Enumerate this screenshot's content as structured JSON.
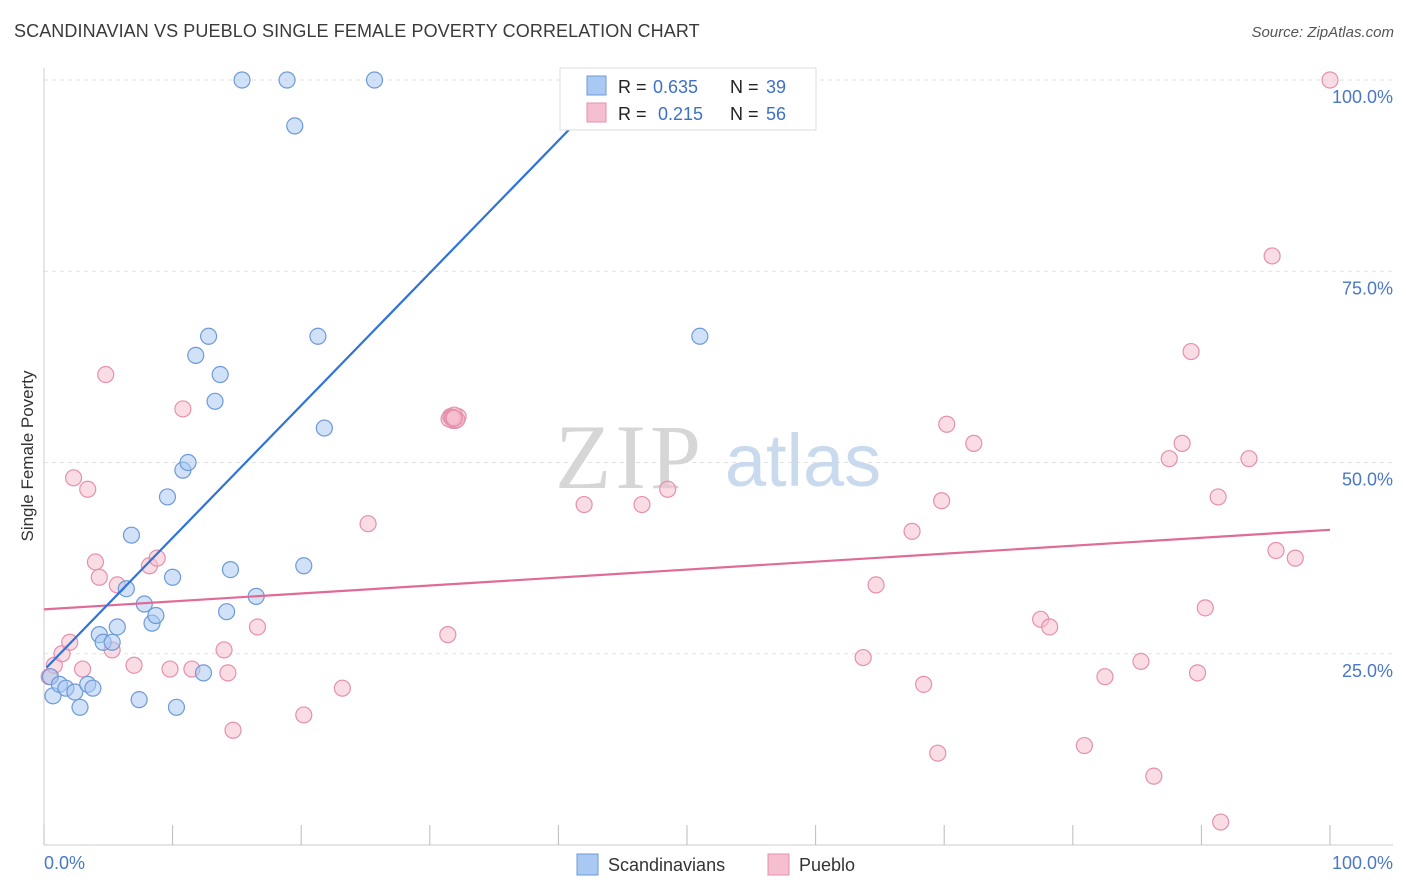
{
  "header": {
    "title": "SCANDINAVIAN VS PUEBLO SINGLE FEMALE POVERTY CORRELATION CHART",
    "source": "Source: ZipAtlas.com"
  },
  "watermark": {
    "zip": "ZIP",
    "atlas": "atlas"
  },
  "colors": {
    "scandinavian_fill": "#a9c8f2",
    "scandinavian_stroke": "#6e9ad6",
    "scandinavian_line": "#2f73d8",
    "pueblo_fill": "#f6bfd0",
    "pueblo_stroke": "#e590ac",
    "pueblo_line": "#e06b96",
    "axis_label": "#4a78c4"
  },
  "legend_top": {
    "r_label": "R =",
    "n_label": "N =",
    "rows": [
      {
        "series": "Scandinavians",
        "r": "0.635",
        "n": "39"
      },
      {
        "series": "Pueblo",
        "r": "0.215",
        "n": "56"
      }
    ]
  },
  "legend_bottom": [
    {
      "label": "Scandinavians"
    },
    {
      "label": "Pueblo"
    }
  ],
  "chart_data": {
    "type": "scatter",
    "title": "SCANDINAVIAN VS PUEBLO SINGLE FEMALE POVERTY CORRELATION CHART",
    "xlabel": "",
    "ylabel": "Single Female Poverty",
    "xlim": [
      0,
      100
    ],
    "ylim": [
      0,
      102.5
    ],
    "x_tick_labels": [
      "0.0%",
      "100.0%"
    ],
    "y_ticks": [
      25,
      50,
      75,
      100
    ],
    "y_tick_labels": [
      "25.0%",
      "50.0%",
      "75.0%",
      "100.0%"
    ],
    "grid": true,
    "series": [
      {
        "name": "Scandinavians",
        "r": 0.635,
        "n": 39,
        "trend": {
          "x0": 0.2,
          "y0": 23.2,
          "x1": 44,
          "y1": 99
        },
        "points": [
          [
            0.5,
            22
          ],
          [
            0.7,
            19.5
          ],
          [
            1.2,
            21
          ],
          [
            1.7,
            20.5
          ],
          [
            2.4,
            20
          ],
          [
            2.8,
            18
          ],
          [
            3.4,
            21
          ],
          [
            3.8,
            20.5
          ],
          [
            4.3,
            27.5
          ],
          [
            4.6,
            26.5
          ],
          [
            5.3,
            26.5
          ],
          [
            5.7,
            28.5
          ],
          [
            6.4,
            33.5
          ],
          [
            6.8,
            40.5
          ],
          [
            7.4,
            19
          ],
          [
            7.8,
            31.5
          ],
          [
            8.4,
            29
          ],
          [
            8.7,
            30
          ],
          [
            9.6,
            45.5
          ],
          [
            10,
            35
          ],
          [
            10.3,
            18
          ],
          [
            10.8,
            49
          ],
          [
            11.2,
            50
          ],
          [
            11.8,
            64
          ],
          [
            12.4,
            22.5
          ],
          [
            12.8,
            66.5
          ],
          [
            13.3,
            58
          ],
          [
            13.7,
            61.5
          ],
          [
            14.2,
            30.5
          ],
          [
            14.5,
            36
          ],
          [
            15.4,
            100
          ],
          [
            16.5,
            32.5
          ],
          [
            18.9,
            100
          ],
          [
            19.5,
            94
          ],
          [
            20.2,
            36.5
          ],
          [
            21.3,
            66.5
          ],
          [
            21.8,
            54.5
          ],
          [
            25.7,
            100
          ],
          [
            51,
            66.5
          ]
        ]
      },
      {
        "name": "Pueblo",
        "r": 0.215,
        "n": 56,
        "trend": {
          "x0": 0,
          "y0": 30.8,
          "x1": 100,
          "y1": 41.2
        },
        "points": [
          [
            0.4,
            22
          ],
          [
            0.8,
            23.5
          ],
          [
            1.4,
            25
          ],
          [
            2,
            26.5
          ],
          [
            2.3,
            48
          ],
          [
            3,
            23
          ],
          [
            3.4,
            46.5
          ],
          [
            4,
            37
          ],
          [
            4.3,
            35
          ],
          [
            4.8,
            61.5
          ],
          [
            5.3,
            25.5
          ],
          [
            5.7,
            34
          ],
          [
            7,
            23.5
          ],
          [
            8.2,
            36.5
          ],
          [
            8.8,
            37.5
          ],
          [
            9.8,
            23
          ],
          [
            10.8,
            57
          ],
          [
            11.5,
            23
          ],
          [
            14,
            25.5
          ],
          [
            14.3,
            22.5
          ],
          [
            14.7,
            15
          ],
          [
            16.6,
            28.5
          ],
          [
            20.2,
            17
          ],
          [
            23.2,
            20.5
          ],
          [
            25.2,
            42
          ],
          [
            31.4,
            27.5
          ],
          [
            31.8,
            55.5
          ],
          [
            32,
            55.5
          ],
          [
            32.2,
            56
          ],
          [
            31.6,
            56
          ],
          [
            31.5,
            55.7
          ],
          [
            32.1,
            55.6
          ],
          [
            31.9,
            56.2
          ],
          [
            31.7,
            55.9
          ],
          [
            31.8,
            55.8
          ],
          [
            31.9,
            55.8
          ],
          [
            42,
            44.5
          ],
          [
            46.5,
            44.5
          ],
          [
            48.5,
            46.5
          ],
          [
            63.7,
            24.5
          ],
          [
            64.7,
            34
          ],
          [
            67.5,
            41
          ],
          [
            68.4,
            21
          ],
          [
            69.5,
            12
          ],
          [
            69.8,
            45
          ],
          [
            70.2,
            55
          ],
          [
            72.3,
            52.5
          ],
          [
            77.5,
            29.5
          ],
          [
            78.2,
            28.5
          ],
          [
            80.9,
            13
          ],
          [
            82.5,
            22
          ],
          [
            85.3,
            24
          ],
          [
            86.3,
            9
          ],
          [
            87.5,
            50.5
          ],
          [
            88.5,
            52.5
          ],
          [
            89.2,
            64.5
          ]
        ],
        "extra_points": [
          [
            89.7,
            22.5
          ],
          [
            90.3,
            31
          ],
          [
            91.3,
            45.5
          ],
          [
            91.5,
            3
          ],
          [
            93.7,
            50.5
          ],
          [
            95.5,
            77
          ],
          [
            95.8,
            38.5
          ],
          [
            97.3,
            37.5
          ],
          [
            100,
            100
          ]
        ]
      }
    ]
  }
}
